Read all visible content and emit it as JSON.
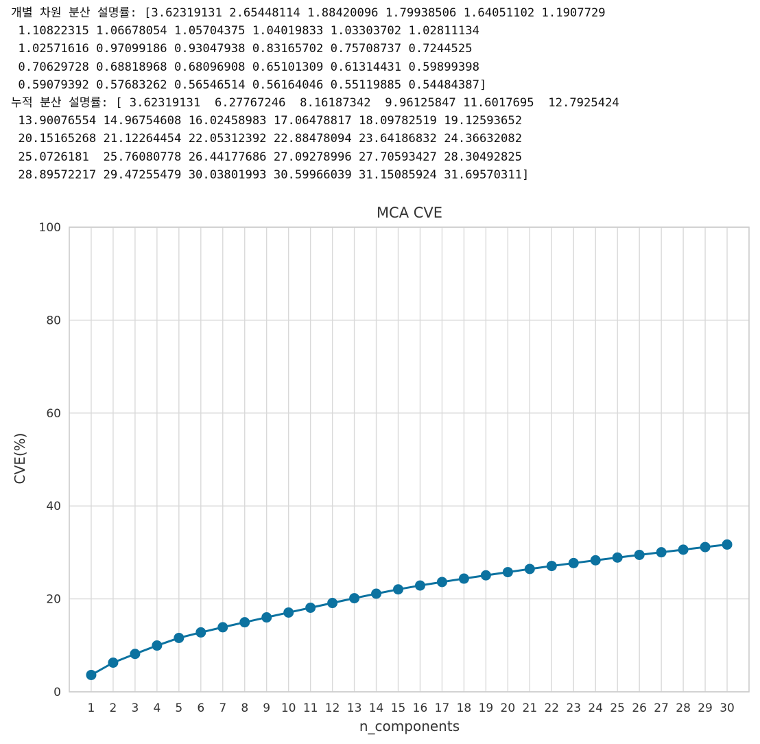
{
  "console_output": {
    "lines": [
      "개별 차원 분산 설명률: [3.62319131 2.65448114 1.88420096 1.79938506 1.64051102 1.1907729",
      " 1.10822315 1.06678054 1.05704375 1.04019833 1.03303702 1.02811134",
      " 1.02571616 0.97099186 0.93047938 0.83165702 0.75708737 0.7244525",
      " 0.70629728 0.68818968 0.68096908 0.65101309 0.61314431 0.59899398",
      " 0.59079392 0.57683262 0.56546514 0.56164046 0.55119885 0.54484387]",
      "누적 분산 설명률: [ 3.62319131  6.27767246  8.16187342  9.96125847 11.6017695  12.7925424",
      " 13.90076554 14.96754608 16.02458983 17.06478817 18.09782519 19.12593652",
      " 20.15165268 21.12264454 22.05312392 22.88478094 23.64186832 24.36632082",
      " 25.0726181  25.76080778 26.44177686 27.09278996 27.70593427 28.30492825",
      " 28.89572217 29.47255479 30.03801993 30.59966039 31.15085924 31.69570311]"
    ]
  },
  "chart_data": {
    "type": "line",
    "title": "MCA CVE",
    "xlabel": "n_components",
    "ylabel": "CVE(%)",
    "x": [
      1,
      2,
      3,
      4,
      5,
      6,
      7,
      8,
      9,
      10,
      11,
      12,
      13,
      14,
      15,
      16,
      17,
      18,
      19,
      20,
      21,
      22,
      23,
      24,
      25,
      26,
      27,
      28,
      29,
      30
    ],
    "x_tick_labels": [
      "1",
      "2",
      "3",
      "4",
      "5",
      "6",
      "7",
      "8",
      "9",
      "10",
      "11",
      "12",
      "13",
      "14",
      "15",
      "16",
      "17",
      "18",
      "19",
      "20",
      "21",
      "22",
      "23",
      "24",
      "25",
      "26",
      "27",
      "28",
      "29",
      "30"
    ],
    "series": [
      {
        "values": [
          3.62319131,
          6.27767246,
          8.16187342,
          9.96125847,
          11.6017695,
          12.7925424,
          13.90076554,
          14.96754608,
          16.02458983,
          17.06478817,
          18.09782519,
          19.12593652,
          20.15165268,
          21.12264454,
          22.05312392,
          22.88478094,
          23.64186832,
          24.36632082,
          25.0726181,
          25.76080778,
          26.44177686,
          27.09278996,
          27.70593427,
          28.30492825,
          28.89572217,
          29.47255479,
          30.03801993,
          30.59966039,
          31.15085924,
          31.69570311
        ],
        "color": "#0c72a0",
        "marker": "circle"
      }
    ],
    "ylim": [
      0,
      100
    ],
    "xlim": [
      0,
      31
    ],
    "y_ticks": [
      0,
      20,
      40,
      60,
      80,
      100
    ],
    "y_tick_labels": [
      "0",
      "20",
      "40",
      "60",
      "80",
      "100"
    ],
    "grid": true,
    "grid_color": "#d9d9d9",
    "axis_frame_color": "#cccccc",
    "text_color": "#333333"
  }
}
